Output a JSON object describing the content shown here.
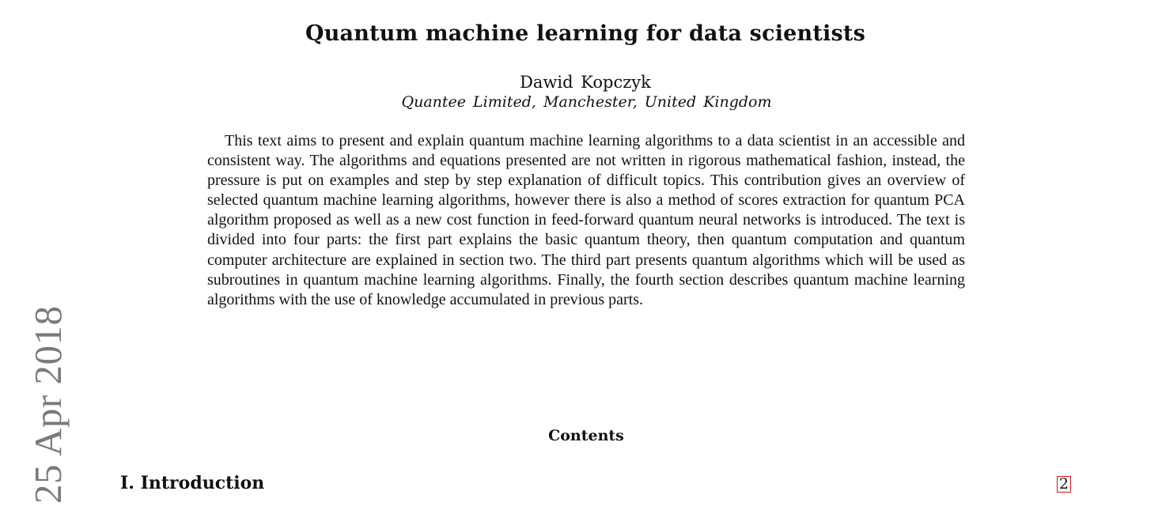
{
  "paper": {
    "title": "Quantum machine learning for data scientists",
    "author": "Dawid Kopczyk",
    "affiliation": "Quantee Limited, Manchester, United Kingdom",
    "abstract": "This text aims to present and explain quantum machine learning algorithms to a data scientist in an accessible and consistent way. The algorithms and equations presented are not written in rigorous mathematical fashion, instead, the pressure is put on examples and step by step explanation of difficult topics. This contribution gives an overview of selected quantum machine learning algorithms, however there is also a method of scores extraction for quantum PCA algorithm proposed as well as a new cost function in feed-forward quantum neural networks is introduced. The text is divided into four parts: the first part explains the basic quantum theory, then quantum computation and quantum computer architecture are explained in section two. The third part presents quantum algorithms which will be used as subroutines in quantum machine learning algorithms. Finally, the fourth section describes quantum machine learning algorithms with the use of knowledge accumulated in previous parts."
  },
  "contents": {
    "heading": "Contents",
    "items": [
      {
        "label": "I. Introduction",
        "page": "2"
      }
    ]
  },
  "sidebar": {
    "arxiv_date": "25 Apr 2018"
  },
  "colors": {
    "link_box": "#d01818",
    "sidebar_text": "#7a7a7a"
  }
}
